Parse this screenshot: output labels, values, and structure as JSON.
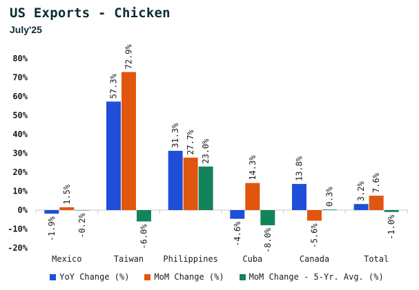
{
  "chart_data": {
    "type": "bar",
    "title": "US Exports - Chicken",
    "subtitle": "July'25",
    "categories": [
      "Mexico",
      "Taiwan",
      "Philippines",
      "Cuba",
      "Canada",
      "Total"
    ],
    "series": [
      {
        "name": "YoY Change (%)",
        "color": "#1f4fd8",
        "values": [
          -1.9,
          57.3,
          31.3,
          -4.6,
          13.8,
          3.2
        ],
        "labels": [
          "-1.9%",
          "57.3%",
          "31.3%",
          "-4.6%",
          "13.8%",
          "3.2%"
        ]
      },
      {
        "name": "MoM Change (%)",
        "color": "#e1560f",
        "values": [
          1.5,
          72.9,
          27.7,
          14.3,
          -5.6,
          7.6
        ],
        "labels": [
          "1.5%",
          "72.9%",
          "27.7%",
          "14.3%",
          "-5.6%",
          "7.6%"
        ]
      },
      {
        "name": "MoM Change - 5-Yr. Avg. (%)",
        "color": "#13845a",
        "values": [
          -0.2,
          -6.0,
          23.0,
          -8.0,
          0.3,
          -1.0
        ],
        "labels": [
          "-0.2%",
          "-6.0%",
          "23.0%",
          "-8.0%",
          "0.3%",
          "-1.0%"
        ]
      }
    ],
    "yticks": [
      -20,
      -10,
      0,
      10,
      20,
      30,
      40,
      50,
      60,
      70,
      80
    ],
    "ytick_labels": [
      "-20%",
      "-10%",
      "0%",
      "10%",
      "20%",
      "30%",
      "40%",
      "50%",
      "60%",
      "70%",
      "80%"
    ],
    "ylim": [
      -20,
      80
    ],
    "grid": false,
    "legend": "bottom"
  }
}
